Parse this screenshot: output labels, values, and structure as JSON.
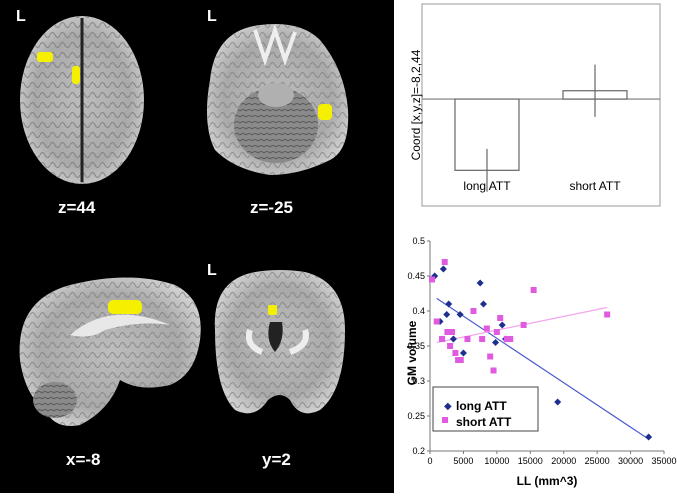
{
  "figure": {
    "orientation_label": "L",
    "slices": [
      {
        "id": "axial-top",
        "label": "z=44"
      },
      {
        "id": "axial-temporal",
        "label": "z=-25"
      },
      {
        "id": "sagittal",
        "label": "x=-8"
      },
      {
        "id": "coronal",
        "label": "y=2"
      }
    ]
  },
  "colors": {
    "activation": "#f5f000",
    "long_att": "#1f2f8f",
    "short_att": "#e15be0",
    "long_fit": "#4a5bd0",
    "short_fit": "#f2a6ec"
  },
  "chart_data": [
    {
      "type": "bar",
      "ylabel": "Coord [x,y,z]=-8,2,44",
      "categories": [
        "long ATT",
        "short ATT"
      ],
      "values": [
        -0.6,
        0.07
      ],
      "error": [
        0.18,
        0.22
      ],
      "ylim": [
        -0.85,
        0.75
      ],
      "grid": false
    },
    {
      "type": "scatter",
      "xlabel": "LL (mm^3)",
      "ylabel": "GM volume",
      "xlim": [
        0,
        35000
      ],
      "ylim": [
        0.2,
        0.5
      ],
      "xticks": [
        "0",
        "5000",
        "10000",
        "15000",
        "20000",
        "25000",
        "30000",
        "35000"
      ],
      "yticks": [
        "0.2",
        "0.25",
        "0.3",
        "0.35",
        "0.4",
        "0.45",
        "0.5"
      ],
      "legend_position": "bottom-left",
      "series": [
        {
          "name": "long ATT",
          "x": [
            700,
            1500,
            2000,
            2500,
            2800,
            3500,
            4500,
            5000,
            7500,
            8000,
            9800,
            10800,
            11300,
            19100,
            32700
          ],
          "y": [
            0.45,
            0.385,
            0.46,
            0.395,
            0.41,
            0.36,
            0.395,
            0.34,
            0.44,
            0.41,
            0.355,
            0.38,
            0.36,
            0.27,
            0.22
          ],
          "trendline": [
            0.418,
            0.217
          ]
        },
        {
          "name": "short ATT",
          "x": [
            300,
            1000,
            1800,
            2200,
            2600,
            3000,
            3300,
            3800,
            4200,
            4600,
            5600,
            6500,
            7800,
            8500,
            9000,
            9500,
            10000,
            10500,
            11500,
            12000,
            14000,
            15500,
            26500
          ],
          "y": [
            0.445,
            0.385,
            0.36,
            0.47,
            0.37,
            0.35,
            0.37,
            0.34,
            0.33,
            0.33,
            0.36,
            0.4,
            0.36,
            0.375,
            0.335,
            0.315,
            0.37,
            0.39,
            0.36,
            0.36,
            0.38,
            0.43,
            0.395
          ],
          "trendline": [
            0.355,
            0.405
          ]
        }
      ]
    }
  ]
}
